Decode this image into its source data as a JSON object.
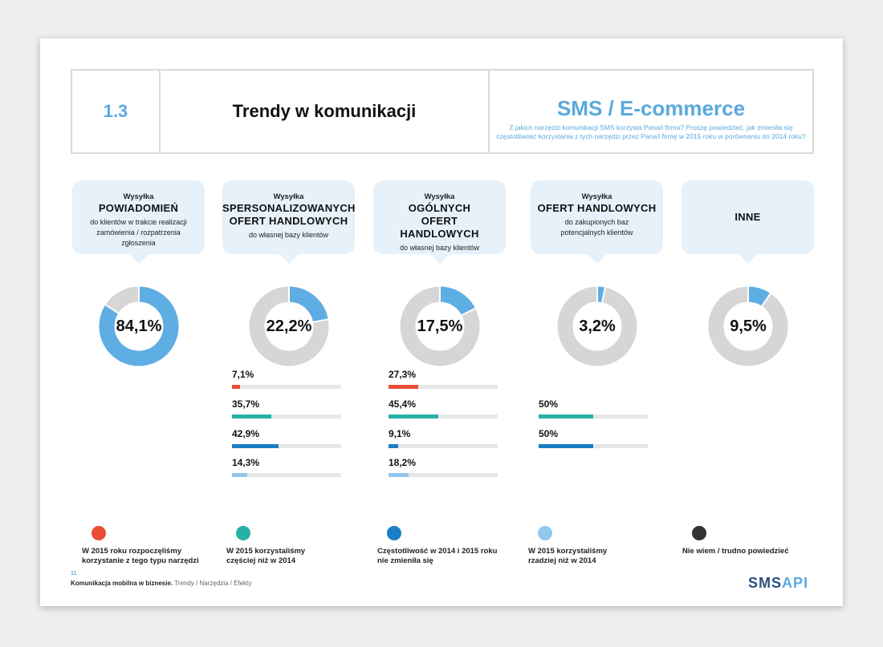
{
  "header": {
    "section_number": "1.3",
    "title": "Trendy w komunikacji",
    "subtitle": "SMS / E-commerce",
    "question": "Z jakich narzędzi komunikacji SMS korzysta Pana/i firma? Proszę powiedzieć, jak zmieniła się częstotliwość korzystania z tych narzędzi przez Pana/i firmę w 2015 roku w porównaniu do 2014 roku?"
  },
  "categories": [
    {
      "pre": "Wysyłka",
      "title": "POWIADOMIEŃ",
      "sub": "do klientów w trakcie realizacji zamówienia / rozpatrzenia zgłoszenia",
      "value_label": "84,1%"
    },
    {
      "pre": "Wysyłka",
      "title": "SPERSONALIZOWANYCH OFERT HANDLOWYCH",
      "sub": "do własnej bazy klientów",
      "value_label": "22,2%"
    },
    {
      "pre": "Wysyłka",
      "title": "OGÓLNYCH OFERT HANDLOWYCH",
      "sub": "do własnej bazy klientów",
      "value_label": "17,5%"
    },
    {
      "pre": "Wysyłka",
      "title": "OFERT HANDLOWYCH",
      "sub": "do zakupionych baz potencjalnych klientów",
      "value_label": "3,2%"
    },
    {
      "pre": "",
      "title": "INNE",
      "sub": "",
      "value_label": "9,5%"
    }
  ],
  "chart_data": [
    {
      "type": "pie",
      "donut": true,
      "categories": [
        "POWIADOMIEŃ",
        "SPERSONALIZOWANYCH OFERT HANDLOWYCH",
        "OGÓLNYCH OFERT HANDLOWYCH",
        "OFERT HANDLOWYCH",
        "INNE"
      ],
      "values": [
        84.1,
        22.2,
        17.5,
        3.2,
        9.5
      ],
      "colors": {
        "filled": "#5eade3",
        "remainder": "#d6d6d6"
      }
    },
    {
      "type": "bar",
      "orientation": "horizontal",
      "categories": [
        "W 2015 roku rozpoczęliśmy korzystanie z tego typu narzędzi",
        "W 2015 korzystaliśmy częściej niż w 2014",
        "Częstotliwość w 2014 i 2015 roku nie zmieniła się",
        "W 2015 korzystaliśmy rzadziej niż w 2014"
      ],
      "series": [
        {
          "name": "SPERSONALIZOWANYCH OFERT HANDLOWYCH",
          "values": [
            7.1,
            35.7,
            42.9,
            14.3
          ],
          "labels": [
            "7,1%",
            "35,7%",
            "42,9%",
            "14,3%"
          ]
        },
        {
          "name": "OGÓLNYCH OFERT HANDLOWYCH",
          "values": [
            27.3,
            45.4,
            9.1,
            18.2
          ],
          "labels": [
            "27,3%",
            "45,4%",
            "9,1%",
            "18,2%"
          ]
        },
        {
          "name": "OFERT HANDLOWYCH",
          "values": [
            null,
            50,
            50,
            null
          ],
          "labels": [
            "",
            "50%",
            "50%",
            ""
          ]
        }
      ],
      "xlim": [
        0,
        100
      ]
    }
  ],
  "legend": [
    {
      "color": "#e84d35",
      "text": "W 2015 roku rozpoczęliśmy korzystanie z tego typu narzędzi"
    },
    {
      "color": "#26b1a6",
      "text": "W 2015 korzystaliśmy częściej niż w 2014"
    },
    {
      "color": "#1a7fc4",
      "text": "Częstotliwość w 2014 i 2015 roku nie zmieniła się"
    },
    {
      "color": "#91c8ec",
      "text": "W 2015 korzystaliśmy rzadziej niż w 2014"
    },
    {
      "color": "#333333",
      "text": "Nie wiem / trudno powiedzieć"
    }
  ],
  "footer": {
    "page_number": "11",
    "bold": "Komunikacja mobilna w biznesie.",
    "rest": "Trendy / Narzędzia / Efekty",
    "logo_a": "SMS",
    "logo_b": "API"
  }
}
